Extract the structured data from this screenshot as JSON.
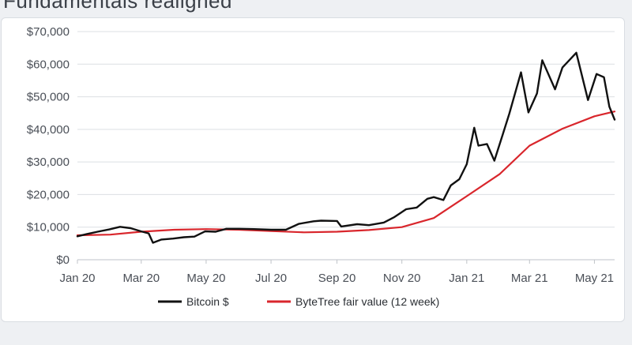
{
  "page": {
    "title": "Fundamentals realigned"
  },
  "chart_data": {
    "type": "line",
    "title": "",
    "xlabel": "",
    "ylabel": "",
    "xlim": [
      "2020-01-01",
      "2021-05-20"
    ],
    "ylim": [
      0,
      70000
    ],
    "grid": "horizontal",
    "legend_position": "bottom",
    "x_ticks": [
      {
        "date": "2020-01-01",
        "label": "Jan 20"
      },
      {
        "date": "2020-03-01",
        "label": "Mar 20"
      },
      {
        "date": "2020-05-01",
        "label": "May 20"
      },
      {
        "date": "2020-07-01",
        "label": "Jul 20"
      },
      {
        "date": "2020-09-01",
        "label": "Sep 20"
      },
      {
        "date": "2020-11-01",
        "label": "Nov 20"
      },
      {
        "date": "2021-01-01",
        "label": "Jan 21"
      },
      {
        "date": "2021-03-01",
        "label": "Mar 21"
      },
      {
        "date": "2021-05-01",
        "label": "May 21"
      }
    ],
    "y_ticks": [
      {
        "value": 0,
        "label": "$0"
      },
      {
        "value": 10000,
        "label": "$10,000"
      },
      {
        "value": 20000,
        "label": "$20,000"
      },
      {
        "value": 30000,
        "label": "$30,000"
      },
      {
        "value": 40000,
        "label": "$40,000"
      },
      {
        "value": 50000,
        "label": "$50,000"
      },
      {
        "value": 60000,
        "label": "$60,000"
      },
      {
        "value": 70000,
        "label": "$70,000"
      }
    ],
    "series": [
      {
        "name": "Bitcoin $",
        "color": "#111111",
        "points": [
          [
            "2020-01-01",
            7200
          ],
          [
            "2020-01-10",
            7900
          ],
          [
            "2020-01-20",
            8600
          ],
          [
            "2020-01-31",
            9300
          ],
          [
            "2020-02-10",
            10100
          ],
          [
            "2020-02-20",
            9700
          ],
          [
            "2020-03-01",
            8700
          ],
          [
            "2020-03-08",
            8100
          ],
          [
            "2020-03-12",
            5200
          ],
          [
            "2020-03-20",
            6200
          ],
          [
            "2020-03-31",
            6500
          ],
          [
            "2020-04-10",
            6900
          ],
          [
            "2020-04-20",
            7100
          ],
          [
            "2020-04-30",
            8700
          ],
          [
            "2020-05-10",
            8600
          ],
          [
            "2020-05-20",
            9500
          ],
          [
            "2020-06-01",
            9500
          ],
          [
            "2020-06-15",
            9400
          ],
          [
            "2020-07-01",
            9200
          ],
          [
            "2020-07-15",
            9200
          ],
          [
            "2020-07-27",
            11000
          ],
          [
            "2020-08-10",
            11800
          ],
          [
            "2020-08-17",
            12000
          ],
          [
            "2020-09-01",
            11900
          ],
          [
            "2020-09-05",
            10200
          ],
          [
            "2020-09-20",
            10900
          ],
          [
            "2020-10-01",
            10600
          ],
          [
            "2020-10-15",
            11400
          ],
          [
            "2020-10-25",
            13100
          ],
          [
            "2020-11-05",
            15500
          ],
          [
            "2020-11-15",
            16000
          ],
          [
            "2020-11-25",
            18700
          ],
          [
            "2020-12-01",
            19200
          ],
          [
            "2020-12-10",
            18300
          ],
          [
            "2020-12-17",
            22800
          ],
          [
            "2020-12-25",
            24700
          ],
          [
            "2021-01-01",
            29300
          ],
          [
            "2021-01-08",
            40500
          ],
          [
            "2021-01-12",
            35000
          ],
          [
            "2021-01-20",
            35500
          ],
          [
            "2021-01-27",
            30400
          ],
          [
            "2021-02-03",
            37600
          ],
          [
            "2021-02-10",
            44800
          ],
          [
            "2021-02-21",
            57500
          ],
          [
            "2021-02-28",
            45200
          ],
          [
            "2021-03-08",
            51000
          ],
          [
            "2021-03-13",
            61200
          ],
          [
            "2021-03-25",
            52300
          ],
          [
            "2021-04-01",
            59000
          ],
          [
            "2021-04-14",
            63500
          ],
          [
            "2021-04-25",
            49000
          ],
          [
            "2021-05-03",
            57000
          ],
          [
            "2021-05-10",
            56000
          ],
          [
            "2021-05-15",
            47000
          ],
          [
            "2021-05-20",
            43000
          ]
        ]
      },
      {
        "name": "ByteTree fair value (12 week)",
        "color": "#d9262c",
        "points": [
          [
            "2020-01-01",
            7500
          ],
          [
            "2020-02-01",
            7700
          ],
          [
            "2020-03-01",
            8600
          ],
          [
            "2020-04-01",
            9200
          ],
          [
            "2020-05-01",
            9400
          ],
          [
            "2020-06-01",
            9200
          ],
          [
            "2020-07-01",
            8800
          ],
          [
            "2020-08-01",
            8400
          ],
          [
            "2020-09-01",
            8600
          ],
          [
            "2020-10-01",
            9100
          ],
          [
            "2020-11-01",
            10000
          ],
          [
            "2020-12-01",
            12800
          ],
          [
            "2021-01-01",
            19500
          ],
          [
            "2021-02-01",
            26300
          ],
          [
            "2021-03-01",
            35000
          ],
          [
            "2021-04-01",
            40200
          ],
          [
            "2021-05-01",
            44000
          ],
          [
            "2021-05-20",
            45500
          ]
        ]
      }
    ]
  }
}
